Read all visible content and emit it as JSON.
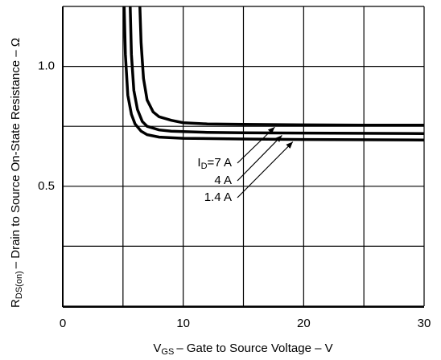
{
  "chart_data": {
    "type": "line",
    "x_label": {
      "main": "V",
      "sub": "GS",
      "rest": "– Gate to Source Voltage – V"
    },
    "y_label": {
      "main": "R",
      "sub": "DS(on)",
      "rest": "– Drain to Source On-State Resistance – Ω"
    },
    "legend_prefix": {
      "main": "I",
      "sub": "D",
      "sign": "="
    },
    "xlim": [
      0,
      30
    ],
    "ylim": [
      0,
      1.25
    ],
    "xticks": [
      0,
      10,
      20,
      30
    ],
    "yticks": [
      0.5,
      {
        "value": 1,
        "label": "1.0"
      }
    ],
    "xgrid": [
      0,
      5,
      10,
      15,
      20,
      25,
      30
    ],
    "ygrid": [
      0,
      0.25,
      0.5,
      0.75,
      1,
      1.25
    ],
    "grid": true,
    "series": [
      {
        "name": "7 A",
        "color": "#000000",
        "x": [
          6.4,
          6.5,
          6.7,
          7,
          7.5,
          8,
          9,
          10,
          12,
          15,
          20,
          25,
          30
        ],
        "values": [
          1.25,
          1.1,
          0.95,
          0.86,
          0.81,
          0.79,
          0.775,
          0.765,
          0.76,
          0.758,
          0.756,
          0.755,
          0.755
        ]
      },
      {
        "name": "4 A",
        "color": "#000000",
        "x": [
          5.6,
          5.7,
          5.9,
          6.2,
          6.6,
          7,
          8,
          9,
          10,
          12,
          15,
          20,
          30
        ],
        "values": [
          1.25,
          1.05,
          0.9,
          0.82,
          0.77,
          0.75,
          0.735,
          0.73,
          0.728,
          0.725,
          0.723,
          0.722,
          0.72
        ]
      },
      {
        "name": "1.4 A",
        "color": "#000000",
        "x": [
          5.1,
          5.2,
          5.4,
          5.7,
          6,
          6.5,
          7,
          8,
          10,
          15,
          20,
          30
        ],
        "values": [
          1.25,
          1.05,
          0.88,
          0.8,
          0.76,
          0.73,
          0.715,
          0.705,
          0.7,
          0.697,
          0.695,
          0.693
        ]
      }
    ]
  }
}
